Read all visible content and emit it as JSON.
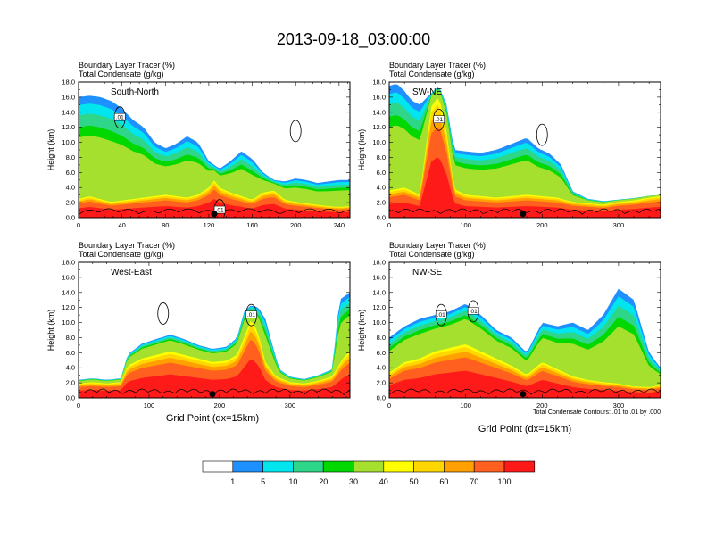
{
  "title": "2013-09-18_03:00:00",
  "variable_labels": [
    "Boundary Layer Tracer   (%)",
    "Total Condensate   (g/kg)"
  ],
  "ylabel": "Height (km)",
  "xlabel": "Grid Point (dx=15km)",
  "footnote": "Total Condensate Contours: .01 to .01 by .000",
  "contour_label": ".01",
  "colors": [
    "#ffffff",
    "#1e90ff",
    "#00e5ee",
    "#2ed68a",
    "#00d800",
    "#a6e02e",
    "#ffff00",
    "#ffd700",
    "#ff9f00",
    "#ff6020",
    "#ff1a1a"
  ],
  "colorbar": {
    "levels": [
      "1",
      "5",
      "10",
      "20",
      "30",
      "40",
      "50",
      "60",
      "70",
      "100"
    ]
  },
  "chart_data": [
    {
      "type": "heatmap",
      "name": "South-North",
      "xlim": [
        0,
        250
      ],
      "ylim": [
        0,
        18
      ],
      "xticks": [
        "0",
        "40",
        "80",
        "120",
        "160",
        "200",
        "240"
      ],
      "yticks": [
        "0.0",
        "2.0",
        "4.0",
        "6.0",
        "8.0",
        "10.0",
        "12.0",
        "14.0",
        "16.0",
        "18.0"
      ],
      "marker_x": 125,
      "boundary_layer_top_km": [
        [
          0,
          2.6
        ],
        [
          10,
          3.0
        ],
        [
          20,
          2.6
        ],
        [
          30,
          2.2
        ],
        [
          40,
          2.4
        ],
        [
          50,
          2.6
        ],
        [
          60,
          2.8
        ],
        [
          70,
          3.0
        ],
        [
          80,
          3.2
        ],
        [
          90,
          3.0
        ],
        [
          100,
          2.8
        ],
        [
          110,
          3.2
        ],
        [
          120,
          4.2
        ],
        [
          125,
          5.2
        ],
        [
          130,
          4.2
        ],
        [
          140,
          3.5
        ],
        [
          150,
          3.0
        ],
        [
          160,
          2.5
        ],
        [
          170,
          3.5
        ],
        [
          180,
          3.8
        ],
        [
          190,
          2.5
        ],
        [
          200,
          2.2
        ],
        [
          210,
          2.0
        ],
        [
          220,
          1.8
        ],
        [
          230,
          1.6
        ],
        [
          240,
          1.5
        ],
        [
          250,
          1.6
        ]
      ],
      "upper_tracer_top_km": [
        [
          0,
          16.0
        ],
        [
          10,
          16.2
        ],
        [
          20,
          16.0
        ],
        [
          30,
          15.5
        ],
        [
          40,
          14.5
        ],
        [
          50,
          13.0
        ],
        [
          60,
          12.0
        ],
        [
          70,
          10.0
        ],
        [
          80,
          9.2
        ],
        [
          90,
          9.8
        ],
        [
          100,
          10.8
        ],
        [
          110,
          10.0
        ],
        [
          120,
          7.5
        ],
        [
          130,
          6.5
        ],
        [
          140,
          7.5
        ],
        [
          150,
          8.8
        ],
        [
          160,
          7.8
        ],
        [
          170,
          6.0
        ],
        [
          180,
          5.0
        ],
        [
          190,
          4.8
        ],
        [
          200,
          5.2
        ],
        [
          210,
          5.0
        ],
        [
          220,
          4.6
        ],
        [
          230,
          4.8
        ],
        [
          240,
          5.0
        ],
        [
          250,
          5.0
        ]
      ],
      "contours": [
        {
          "label": ".01",
          "label_x": 38,
          "label_y": 13.3
        },
        {
          "label": "",
          "cx": 200,
          "cy": 11.5
        },
        {
          "label": ".01",
          "label_x": 130,
          "label_y": 1.0
        }
      ]
    },
    {
      "type": "heatmap",
      "name": "SW-NE",
      "xlim": [
        0,
        355
      ],
      "ylim": [
        0,
        18
      ],
      "xticks": [
        "0",
        "100",
        "200",
        "300"
      ],
      "yticks": [
        "0.0",
        "2.0",
        "4.0",
        "6.0",
        "8.0",
        "10.0",
        "12.0",
        "14.0",
        "16.0",
        "18.0"
      ],
      "marker_x": 175,
      "boundary_layer_top_km": [
        [
          0,
          3.8
        ],
        [
          20,
          4.2
        ],
        [
          40,
          3.2
        ],
        [
          55,
          15.5
        ],
        [
          65,
          17.0
        ],
        [
          75,
          12.0
        ],
        [
          85,
          4.0
        ],
        [
          100,
          3.2
        ],
        [
          120,
          3.0
        ],
        [
          140,
          2.8
        ],
        [
          160,
          3.0
        ],
        [
          180,
          3.2
        ],
        [
          200,
          3.0
        ],
        [
          220,
          2.8
        ],
        [
          240,
          2.2
        ],
        [
          260,
          2.0
        ],
        [
          280,
          1.8
        ],
        [
          300,
          2.2
        ],
        [
          320,
          2.4
        ],
        [
          340,
          2.8
        ],
        [
          355,
          3.0
        ]
      ],
      "upper_tracer_top_km": [
        [
          0,
          17.5
        ],
        [
          10,
          17.8
        ],
        [
          20,
          16.8
        ],
        [
          30,
          15.5
        ],
        [
          40,
          15.0
        ],
        [
          55,
          16.5
        ],
        [
          65,
          17.5
        ],
        [
          75,
          15.0
        ],
        [
          85,
          9.0
        ],
        [
          100,
          8.8
        ],
        [
          120,
          8.6
        ],
        [
          140,
          9.0
        ],
        [
          160,
          9.8
        ],
        [
          180,
          10.6
        ],
        [
          195,
          9.2
        ],
        [
          210,
          8.5
        ],
        [
          225,
          7.0
        ],
        [
          240,
          3.5
        ],
        [
          260,
          2.5
        ],
        [
          280,
          2.2
        ],
        [
          300,
          2.4
        ],
        [
          320,
          2.6
        ],
        [
          340,
          2.9
        ],
        [
          355,
          3.0
        ]
      ],
      "contours": [
        {
          "label": ".01",
          "label_x": 65,
          "label_y": 13.0
        },
        {
          "label": "",
          "cx": 200,
          "cy": 11.0
        }
      ]
    },
    {
      "type": "heatmap",
      "name": "West-East",
      "xlim": [
        0,
        385
      ],
      "ylim": [
        0,
        18
      ],
      "xticks": [
        "0",
        "100",
        "200",
        "300"
      ],
      "yticks": [
        "0.0",
        "2.0",
        "4.0",
        "6.0",
        "8.0",
        "10.0",
        "12.0",
        "14.0",
        "16.0",
        "18.0"
      ],
      "marker_x": 190,
      "boundary_layer_top_km": [
        [
          0,
          2.0
        ],
        [
          20,
          2.2
        ],
        [
          40,
          2.0
        ],
        [
          60,
          2.2
        ],
        [
          70,
          4.5
        ],
        [
          90,
          5.5
        ],
        [
          110,
          6.0
        ],
        [
          130,
          6.5
        ],
        [
          150,
          6.0
        ],
        [
          170,
          5.5
        ],
        [
          190,
          5.0
        ],
        [
          210,
          5.2
        ],
        [
          225,
          6.0
        ],
        [
          235,
          8.5
        ],
        [
          245,
          11.0
        ],
        [
          255,
          9.0
        ],
        [
          265,
          5.0
        ],
        [
          280,
          3.0
        ],
        [
          300,
          2.2
        ],
        [
          320,
          2.0
        ],
        [
          340,
          2.4
        ],
        [
          360,
          3.0
        ],
        [
          375,
          5.5
        ],
        [
          385,
          6.5
        ]
      ],
      "upper_tracer_top_km": [
        [
          0,
          2.4
        ],
        [
          20,
          2.6
        ],
        [
          40,
          2.4
        ],
        [
          60,
          2.6
        ],
        [
          70,
          5.8
        ],
        [
          90,
          7.2
        ],
        [
          110,
          7.8
        ],
        [
          130,
          8.4
        ],
        [
          150,
          7.8
        ],
        [
          170,
          7.0
        ],
        [
          190,
          6.5
        ],
        [
          210,
          6.8
        ],
        [
          225,
          8.0
        ],
        [
          235,
          11.5
        ],
        [
          245,
          12.3
        ],
        [
          255,
          12.0
        ],
        [
          265,
          10.5
        ],
        [
          275,
          7.0
        ],
        [
          285,
          3.8
        ],
        [
          300,
          2.8
        ],
        [
          320,
          2.5
        ],
        [
          340,
          3.0
        ],
        [
          360,
          3.8
        ],
        [
          370,
          13.0
        ],
        [
          385,
          14.0
        ]
      ],
      "contours": [
        {
          "label": ".01",
          "label_x": 245,
          "label_y": 11.0
        },
        {
          "label": "",
          "cx": 120,
          "cy": 11.2
        }
      ]
    },
    {
      "type": "heatmap",
      "name": "NW-SE",
      "xlim": [
        0,
        355
      ],
      "ylim": [
        0,
        18
      ],
      "xticks": [
        "0",
        "100",
        "200",
        "300"
      ],
      "yticks": [
        "0.0",
        "2.0",
        "4.0",
        "6.0",
        "8.0",
        "10.0",
        "12.0",
        "14.0",
        "16.0",
        "18.0"
      ],
      "marker_x": 175,
      "boundary_layer_top_km": [
        [
          0,
          3.5
        ],
        [
          20,
          5.0
        ],
        [
          40,
          5.5
        ],
        [
          60,
          6.5
        ],
        [
          80,
          7.0
        ],
        [
          100,
          7.5
        ],
        [
          120,
          6.5
        ],
        [
          140,
          5.5
        ],
        [
          160,
          4.5
        ],
        [
          180,
          3.2
        ],
        [
          200,
          5.0
        ],
        [
          220,
          4.0
        ],
        [
          240,
          3.0
        ],
        [
          260,
          2.5
        ],
        [
          280,
          2.2
        ],
        [
          300,
          2.0
        ],
        [
          320,
          1.6
        ],
        [
          340,
          1.5
        ],
        [
          355,
          1.8
        ]
      ],
      "upper_tracer_top_km": [
        [
          0,
          8.0
        ],
        [
          20,
          9.5
        ],
        [
          40,
          10.5
        ],
        [
          60,
          11.0
        ],
        [
          80,
          11.5
        ],
        [
          100,
          12.5
        ],
        [
          120,
          11.0
        ],
        [
          140,
          9.0
        ],
        [
          160,
          8.0
        ],
        [
          180,
          6.0
        ],
        [
          200,
          10.0
        ],
        [
          220,
          9.5
        ],
        [
          240,
          10.0
        ],
        [
          260,
          9.0
        ],
        [
          280,
          11.0
        ],
        [
          300,
          14.5
        ],
        [
          320,
          13.0
        ],
        [
          340,
          6.0
        ],
        [
          355,
          4.0
        ]
      ],
      "contours": [
        {
          "label": ".01",
          "label_x": 68,
          "label_y": 11.0
        },
        {
          "label": ".01",
          "label_x": 110,
          "label_y": 11.5
        }
      ]
    }
  ]
}
